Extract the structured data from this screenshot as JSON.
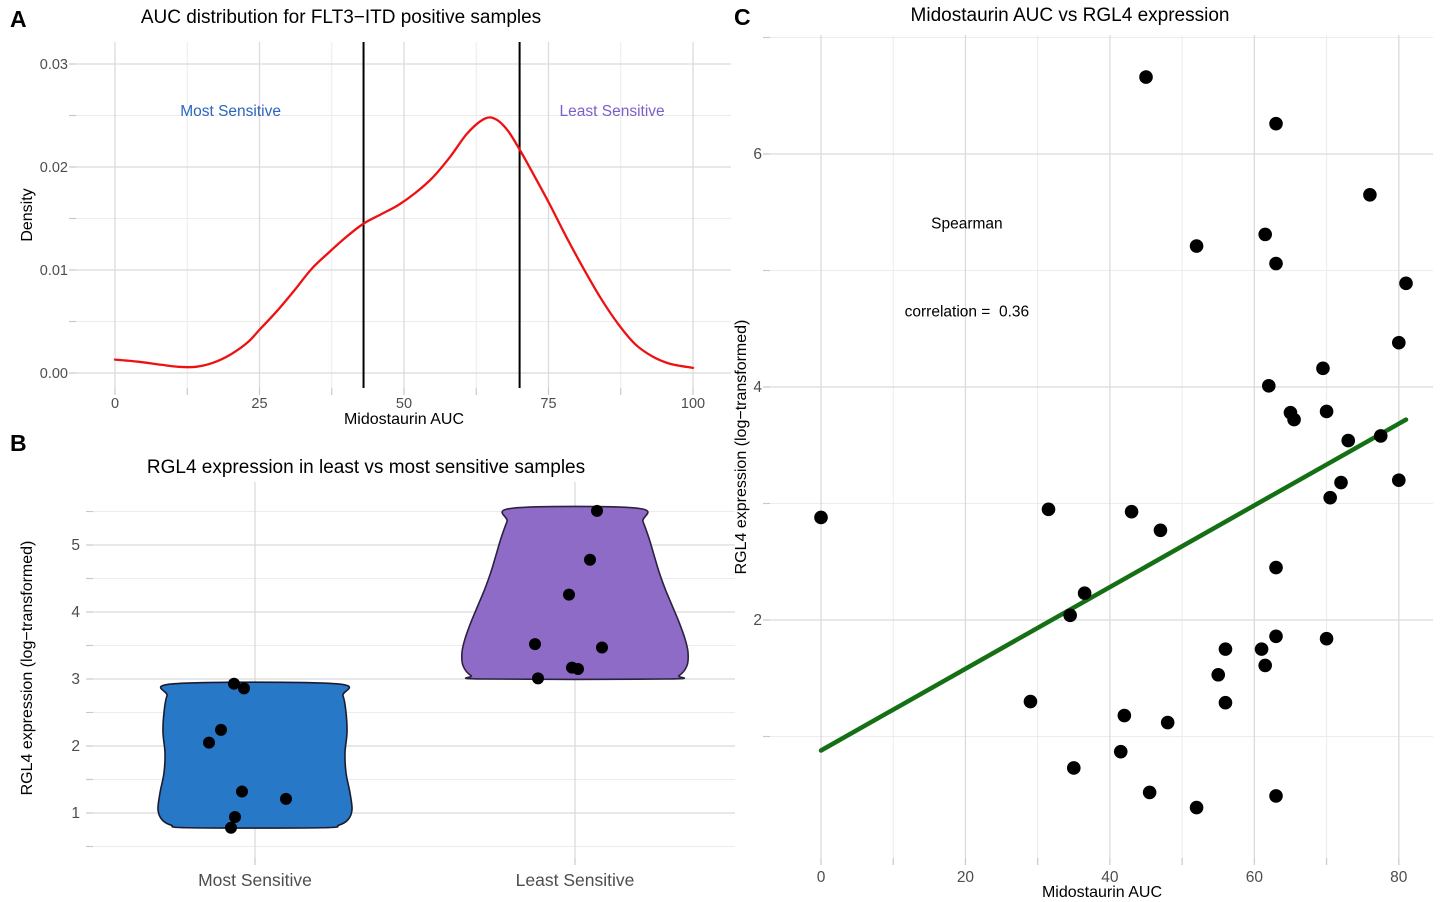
{
  "figure_tags": {
    "a": "A",
    "b": "B",
    "c": "C"
  },
  "colors": {
    "background": "#ffffff",
    "grid_major": "#DBDBDB",
    "grid_minor": "#ECECEC",
    "axis_text": "#4D4D4D",
    "tick_mark": "#C9C9C9",
    "density_line": "#EE1111",
    "reference_line": "#000000",
    "most_sensitive_blue": "#2A65BE",
    "least_sensitive_purple": "#7B5FC8",
    "violin_blue_fill": "#2878C8",
    "violin_purple_fill": "#8F6BC8",
    "scatter_point": "#000000",
    "trend_green": "#156F15"
  },
  "chart_data": [
    {
      "type": "line",
      "panel": "A",
      "title": "AUC distribution for FLT3−ITD positive samples",
      "xlabel": "Midostaurin AUC",
      "ylabel": "Density",
      "xlim": [
        0,
        100
      ],
      "ylim": [
        0,
        0.03
      ],
      "x_ticks": [
        0,
        25,
        50,
        75,
        100
      ],
      "y_ticks": [
        0,
        0.01,
        0.02,
        0.03
      ],
      "y_tick_labels": [
        "0.00",
        "0.01",
        "0.02",
        "0.03"
      ],
      "grid": true,
      "line_color": "#EE1111",
      "vlines": [
        43,
        70
      ],
      "annotations": [
        {
          "label": "Most Sensitive",
          "x": 20,
          "y": 0.0253,
          "color": "#2A65BE"
        },
        {
          "label": "Least Sensitive",
          "x": 86,
          "y": 0.0253,
          "color": "#7B5FC8"
        }
      ],
      "curve": [
        [
          0,
          0.0013
        ],
        [
          4,
          0.0011
        ],
        [
          8,
          0.0008
        ],
        [
          11,
          0.0006
        ],
        [
          14,
          0.0006
        ],
        [
          17,
          0.001
        ],
        [
          20,
          0.0018
        ],
        [
          23,
          0.003
        ],
        [
          25,
          0.0042
        ],
        [
          28,
          0.006
        ],
        [
          31,
          0.008
        ],
        [
          34,
          0.0101
        ],
        [
          37,
          0.0117
        ],
        [
          40,
          0.0132
        ],
        [
          43,
          0.0145
        ],
        [
          46,
          0.0154
        ],
        [
          49,
          0.0163
        ],
        [
          52,
          0.0175
        ],
        [
          55,
          0.019
        ],
        [
          58,
          0.021
        ],
        [
          61,
          0.0233
        ],
        [
          64,
          0.0247
        ],
        [
          66,
          0.0246
        ],
        [
          68,
          0.0235
        ],
        [
          70,
          0.0217
        ],
        [
          72,
          0.0197
        ],
        [
          75,
          0.0166
        ],
        [
          78,
          0.0133
        ],
        [
          81,
          0.0102
        ],
        [
          84,
          0.0073
        ],
        [
          87,
          0.0048
        ],
        [
          90,
          0.0028
        ],
        [
          93,
          0.0016
        ],
        [
          96,
          0.0009
        ],
        [
          100,
          0.0005
        ]
      ]
    },
    {
      "type": "violin",
      "panel": "B",
      "title": "RGL4 expression in least vs most sensitive samples",
      "xlabel": "",
      "ylabel": "RGL4 expression (log−transformed)",
      "categories": [
        "Most Sensitive",
        "Least Sensitive"
      ],
      "y_ticks": [
        1,
        2,
        3,
        4,
        5
      ],
      "y_minor": [
        0.5,
        1.5,
        2.5,
        3.5,
        4.5,
        5.5
      ],
      "grid": true,
      "groups": [
        {
          "label": "Most Sensitive",
          "fill": "#2878C8",
          "stroke": "#1B1B2F",
          "value_range": [
            0.78,
            2.93
          ],
          "profile": [
            [
              2.93,
              80
            ],
            [
              2.75,
              88
            ],
            [
              2.5,
              91
            ],
            [
              2.2,
              92
            ],
            [
              1.9,
              90
            ],
            [
              1.6,
              91
            ],
            [
              1.3,
              95
            ],
            [
              1.05,
              97
            ],
            [
              0.9,
              93
            ],
            [
              0.82,
              84
            ],
            [
              0.78,
              66
            ]
          ],
          "points": [
            [
              -21,
              2.93
            ],
            [
              -11,
              2.86
            ],
            [
              -34,
              2.24
            ],
            [
              -46,
              2.05
            ],
            [
              -13,
              1.32
            ],
            [
              31,
              1.21
            ],
            [
              -20,
              0.94
            ],
            [
              -24,
              0.78
            ]
          ]
        },
        {
          "label": "Least Sensitive",
          "fill": "#8F6BC8",
          "stroke": "#2B2140",
          "value_range": [
            3.0,
            5.55
          ],
          "profile": [
            [
              5.55,
              62
            ],
            [
              5.35,
              68
            ],
            [
              5.1,
              74
            ],
            [
              4.85,
              79
            ],
            [
              4.6,
              84
            ],
            [
              4.35,
              90
            ],
            [
              4.1,
              97
            ],
            [
              3.85,
              104
            ],
            [
              3.6,
              110
            ],
            [
              3.4,
              113
            ],
            [
              3.2,
              112
            ],
            [
              3.05,
              104
            ],
            [
              3.0,
              92
            ]
          ],
          "points": [
            [
              22,
              5.51
            ],
            [
              15,
              4.78
            ],
            [
              -6,
              4.26
            ],
            [
              -40,
              3.52
            ],
            [
              27,
              3.47
            ],
            [
              -3,
              3.17
            ],
            [
              3,
              3.15
            ],
            [
              -37,
              3.01
            ]
          ]
        }
      ]
    },
    {
      "type": "scatter",
      "panel": "C",
      "title": "Midostaurin AUC vs RGL4 expression",
      "xlabel": "Midostaurin AUC",
      "ylabel": "RGL4 expression (log−transformed)",
      "x_ticks": [
        0,
        20,
        40,
        60,
        80
      ],
      "x_minor": [
        10,
        30,
        50,
        70
      ],
      "y_ticks": [
        2,
        4,
        6
      ],
      "y_minor": [
        1,
        3,
        5,
        7
      ],
      "grid": true,
      "point_color": "#000000",
      "spearman_correlation": 0.36,
      "annotation": {
        "lines": [
          "Spearman",
          "correlation =  0.36"
        ],
        "x": 20.2,
        "y": 5.02
      },
      "trend": {
        "color": "#156F15",
        "x1": 0,
        "y1": 0.88,
        "x2": 81,
        "y2": 3.72
      },
      "points": [
        [
          45,
          6.66
        ],
        [
          63,
          6.26
        ],
        [
          76,
          5.65
        ],
        [
          61.5,
          5.31
        ],
        [
          52,
          5.21
        ],
        [
          63,
          5.06
        ],
        [
          81,
          4.89
        ],
        [
          80,
          4.38
        ],
        [
          69.5,
          4.16
        ],
        [
          62,
          4.01
        ],
        [
          65,
          3.78
        ],
        [
          65.5,
          3.72
        ],
        [
          70,
          3.79
        ],
        [
          73,
          3.54
        ],
        [
          77.5,
          3.58
        ],
        [
          80,
          3.2
        ],
        [
          72,
          3.18
        ],
        [
          70.5,
          3.05
        ],
        [
          31.5,
          2.95
        ],
        [
          43,
          2.93
        ],
        [
          0,
          2.88
        ],
        [
          47,
          2.77
        ],
        [
          63,
          2.45
        ],
        [
          36.5,
          2.23
        ],
        [
          34.5,
          2.04
        ],
        [
          63,
          1.86
        ],
        [
          70,
          1.84
        ],
        [
          61,
          1.75
        ],
        [
          56,
          1.75
        ],
        [
          61.5,
          1.61
        ],
        [
          55,
          1.53
        ],
        [
          56,
          1.29
        ],
        [
          29,
          1.3
        ],
        [
          42,
          1.18
        ],
        [
          48,
          1.12
        ],
        [
          41.5,
          0.87
        ],
        [
          35,
          0.73
        ],
        [
          45.5,
          0.52
        ],
        [
          63,
          0.49
        ],
        [
          52,
          0.39
        ]
      ]
    }
  ]
}
